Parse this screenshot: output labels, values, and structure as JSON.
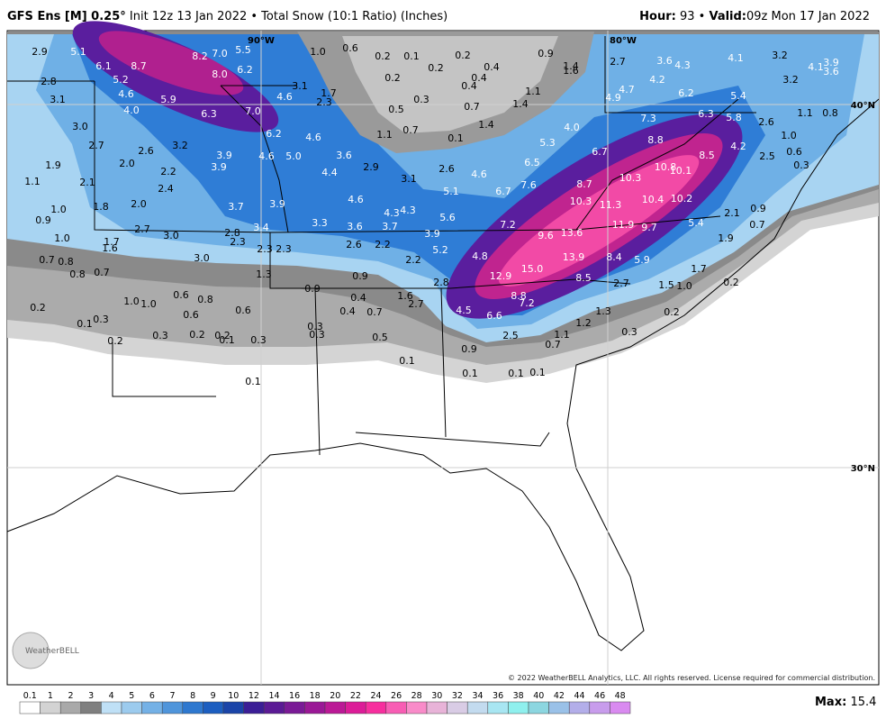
{
  "header": {
    "title": "GFS Ens [M] 0.25°",
    "info": "Init 12z 13 Jan 2022 • Total Snow (10:1 Ratio) (Inches)",
    "hour_label": "Hour:",
    "hour": 93,
    "separator": "•",
    "valid_label": "Valid:",
    "valid": "09z Mon 17 Jan 2022"
  },
  "map": {
    "graticule": [
      "90°W",
      "80°W",
      "40°N",
      "30°N"
    ],
    "logo": "WeatherBELL",
    "copyright": "© 2022 WeatherBELL Analytics, LLC. All rights reserved. License required for commercial distribution.",
    "labels": [
      "2.9",
      "5.1",
      "6.1",
      "8.7",
      "8.2",
      "7.0",
      "5.5",
      "8.0",
      "6.2",
      "5.2",
      "2.8",
      "4.6",
      "5.9",
      "3.1",
      "4.0",
      "6.3",
      "7.0",
      "4.6",
      "3.1",
      "1.7",
      "2.3",
      "1.0",
      "0.6",
      "0.2",
      "0.1",
      "0.2",
      "0.2",
      "0.3",
      "0.5",
      "0.2",
      "0.4",
      "0.4",
      "0.4",
      "0.9",
      "1.4",
      "1.6",
      "2.7",
      "3.6",
      "4.3",
      "4.1",
      "3.2",
      "4.1",
      "3.9",
      "3.6",
      "3.2",
      "4.7",
      "4.9",
      "4.2",
      "6.2",
      "5.4",
      "1.1",
      "1.4",
      "0.7",
      "1.4",
      "3.0",
      "6.2",
      "4.6",
      "1.1",
      "0.7",
      "0.1",
      "7.3",
      "6.3",
      "5.8",
      "2.6",
      "1.1",
      "0.8",
      "5.3",
      "4.0",
      "6.7",
      "8.8",
      "8.5",
      "4.2",
      "1.0",
      "0.6",
      "0.3",
      "2.5",
      "2.7",
      "2.6",
      "3.2",
      "3.9",
      "4.6",
      "5.0",
      "3.6",
      "1.9",
      "2.0",
      "2.2",
      "3.9",
      "4.4",
      "2.9",
      "3.1",
      "2.6",
      "4.6",
      "6.5",
      "10.3",
      "10.8",
      "10.1",
      "1.1",
      "2.1",
      "2.4",
      "7.6",
      "8.7",
      "6.7",
      "5.1",
      "1.8",
      "1.0",
      "2.0",
      "3.7",
      "3.9",
      "4.6",
      "4.3",
      "4.3",
      "10.3",
      "11.3",
      "10.4",
      "10.2",
      "2.1",
      "0.9",
      "0.9",
      "2.7",
      "3.0",
      "2.8",
      "3.4",
      "3.3",
      "3.6",
      "3.7",
      "5.6",
      "7.2",
      "9.6",
      "13.6",
      "11.9",
      "9.7",
      "5.4",
      "0.7",
      "1.0",
      "1.7",
      "1.6",
      "2.3",
      "2.3",
      "2.3",
      "2.6",
      "2.2",
      "3.9",
      "5.2",
      "1.9",
      "0.7",
      "0.8",
      "3.0",
      "2.2",
      "4.8",
      "15.0",
      "13.9",
      "8.4",
      "5.9",
      "1.7",
      "0.8",
      "0.7",
      "1.3",
      "0.9",
      "12.9",
      "8.5",
      "2.7",
      "1.5",
      "1.0",
      "0.2",
      "0.6",
      "0.8",
      "1.0",
      "1.0",
      "0.9",
      "0.4",
      "1.6",
      "2.7",
      "2.8",
      "8.8",
      "7.2",
      "0.2",
      "0.6",
      "0.6",
      "0.4",
      "0.7",
      "4.5",
      "6.6",
      "1.2",
      "1.3",
      "0.2",
      "0.3",
      "0.1",
      "0.3",
      "0.2",
      "0.1",
      "0.3",
      "0.2",
      "0.3",
      "0.3",
      "0.5",
      "2.5",
      "1.1",
      "0.7",
      "0.3",
      "0.2",
      "0.9",
      "0.1",
      "0.1",
      "0.1",
      "0.1",
      "0.1"
    ]
  },
  "legend": {
    "ticks": [
      "0.1",
      "1",
      "2",
      "3",
      "4",
      "5",
      "6",
      "7",
      "8",
      "9",
      "10",
      "12",
      "14",
      "16",
      "18",
      "20",
      "22",
      "24",
      "26",
      "28",
      "30",
      "32",
      "34",
      "36",
      "38",
      "40",
      "42",
      "44",
      "46",
      "48"
    ],
    "colors": [
      "#ffffff",
      "#d3d3d3",
      "#a9a9a9",
      "#7f7f7f",
      "#bfe0f6",
      "#9ccbee",
      "#74b1e6",
      "#4f95db",
      "#2e78cf",
      "#1c5ec0",
      "#1a44a8",
      "#3b1e96",
      "#5b1a95",
      "#7a1a96",
      "#9a1896",
      "#bb1996",
      "#dc1c98",
      "#f72e9e",
      "#f85db4",
      "#f98bc9",
      "#e8b3d8",
      "#d9cce5",
      "#c3dbef",
      "#a8e6f2",
      "#8ff0ee",
      "#8cd6e0",
      "#9ac1e8",
      "#b3aee9",
      "#c89cec",
      "#d98af0"
    ]
  },
  "max": {
    "label": "Max:",
    "value": 15.4
  }
}
